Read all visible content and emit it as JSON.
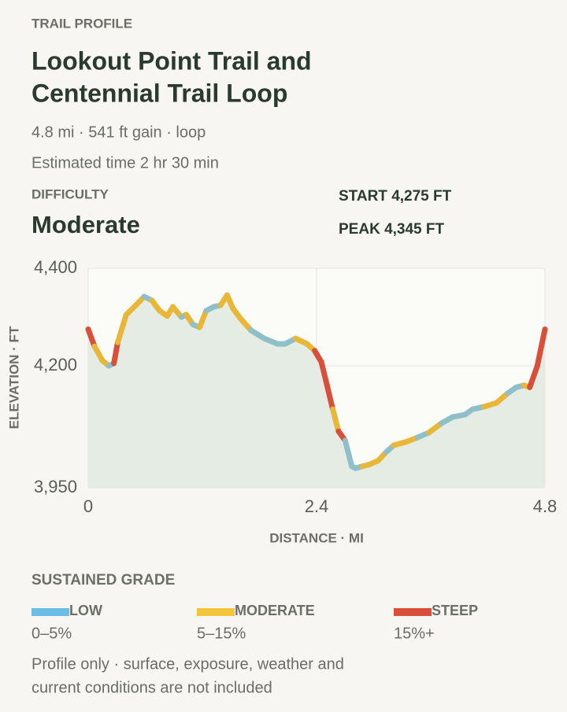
{
  "header": {
    "eyebrow": "TRAIL PROFILE",
    "title_lines": [
      "Lookout Point Trail and",
      "Centennial Trail Loop"
    ],
    "summary": "4.8 mi · 541 ft gain · loop",
    "time": "Estimated time 2 hr 30 min",
    "difficulty_label": "DIFFICULTY",
    "difficulty": "Moderate",
    "start": "START 4,275 FT",
    "peak": "PEAK 4,345 FT"
  },
  "chart_data": {
    "type": "line",
    "x_label": "DISTANCE · MI",
    "y_label": "ELEVATION · FT",
    "xlim": [
      0,
      4.8
    ],
    "xticks": [
      0,
      2.4,
      4.8
    ],
    "ylim": [
      3950,
      4400
    ],
    "yticks": [
      {
        "value": 3950,
        "label": "3,950"
      },
      {
        "value": 4200,
        "label": "4,200"
      },
      {
        "value": 4400,
        "label": "4,400"
      }
    ],
    "grid": true,
    "area_color": "#e5ece3",
    "x": [
      0,
      0.066,
      0.149,
      0.215,
      0.27,
      0.31,
      0.4,
      0.5,
      0.588,
      0.67,
      0.75,
      0.83,
      0.89,
      0.98,
      1.03,
      1.1,
      1.17,
      1.24,
      1.32,
      1.39,
      1.46,
      1.52,
      1.6,
      1.71,
      1.85,
      1.99,
      2.07,
      2.18,
      2.3,
      2.38,
      2.45,
      2.51,
      2.57,
      2.63,
      2.7,
      2.77,
      2.81,
      2.88,
      2.96,
      3.05,
      3.13,
      3.21,
      3.34,
      3.46,
      3.58,
      3.71,
      3.83,
      3.96,
      4.04,
      4.16,
      4.29,
      4.41,
      4.5,
      4.58,
      4.64,
      4.72,
      4.8
    ],
    "series": [
      {
        "name": "Elevation",
        "values": [
          4275,
          4240,
          4211,
          4200,
          4205,
          4248,
          4305,
          4324,
          4342,
          4334,
          4313,
          4302,
          4321,
          4300,
          4305,
          4285,
          4279,
          4313,
          4321,
          4324,
          4345,
          4318,
          4297,
          4273,
          4256,
          4245,
          4245,
          4256,
          4245,
          4231,
          4208,
          4160,
          4111,
          4066,
          4047,
          3994,
          3990,
          3994,
          3998,
          4006,
          4023,
          4037,
          4044,
          4053,
          4063,
          4082,
          4095,
          4100,
          4111,
          4116,
          4124,
          4144,
          4156,
          4160,
          4156,
          4200,
          4275
        ],
        "colors": [
          "#d9503a",
          "#d9503a",
          "#e8b73a",
          "#e8b73a",
          "#8fc0c9",
          "#d9503a",
          "#e8b73a",
          "#e8b73a",
          "#e8b73a",
          "#8fc0c9",
          "#e8b73a",
          "#e8b73a",
          "#e8b73a",
          "#e8b73a",
          "#8fc0c9",
          "#e8b73a",
          "#8fc0c9",
          "#e8b73a",
          "#8fc0c9",
          "#8fc0c9",
          "#e8b73a",
          "#e8b73a",
          "#e8b73a",
          "#e8b73a",
          "#8fc0c9",
          "#8fc0c9",
          "#8fc0c9",
          "#8fc0c9",
          "#e8b73a",
          "#e8b73a",
          "#d9503a",
          "#d9503a",
          "#d9503a",
          "#e8b73a",
          "#d9503a",
          "#8fc0c9",
          "#8fc0c9",
          "#8fc0c9",
          "#e8b73a",
          "#e8b73a",
          "#e8b73a",
          "#8fc0c9",
          "#e8b73a",
          "#e8b73a",
          "#8fc0c9",
          "#e8b73a",
          "#8fc0c9",
          "#8fc0c9",
          "#8fc0c9",
          "#8fc0c9",
          "#e8b73a",
          "#e8b73a",
          "#8fc0c9",
          "#8fc0c9",
          "#e8b73a",
          "#d9503a",
          "#d9503a"
        ]
      }
    ]
  },
  "legend": {
    "title": "SUSTAINED GRADE",
    "items": [
      {
        "name": "LOW",
        "color": "#6cbde3",
        "range": "0–5%"
      },
      {
        "name": "MODERATE",
        "color": "#f2c53d",
        "range": "5–15%"
      },
      {
        "name": "STEEP",
        "color": "#d9503a",
        "range": "15%+"
      }
    ]
  },
  "footnote_lines": [
    "Profile only · surface, exposure, weather and",
    "current conditions are not included"
  ]
}
